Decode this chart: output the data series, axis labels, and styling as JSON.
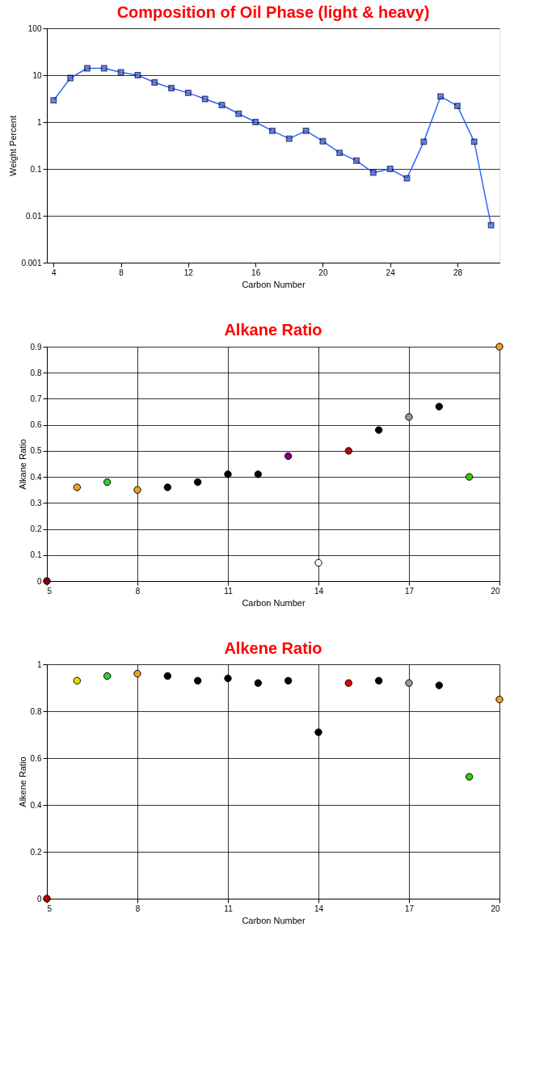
{
  "chart_data": [
    {
      "type": "line",
      "title": "Composition of Oil Phase (light & heavy)",
      "xlabel": "Carbon Number",
      "ylabel": "Weight Percent",
      "log": "y",
      "grid": "y",
      "marker": "square",
      "line_style": "solid",
      "x": [
        4,
        5,
        6,
        7,
        8,
        9,
        10,
        11,
        12,
        13,
        14,
        15,
        16,
        17,
        18,
        19,
        20,
        21,
        22,
        23,
        24,
        25,
        26,
        27,
        28,
        29,
        30
      ],
      "series": [
        {
          "color": "#3366ff",
          "values": [
            2.9,
            8.7,
            14,
            14,
            11.5,
            10,
            7,
            5.3,
            4.2,
            3.1,
            2.3,
            1.5,
            1.0,
            0.65,
            0.44,
            0.65,
            0.39,
            0.22,
            0.15,
            0.083,
            0.1,
            0.063,
            0.38,
            3.5,
            2.2,
            0.38,
            0.0063
          ]
        }
      ],
      "xlim": [
        3.6,
        30.5
      ],
      "xticks": [
        4,
        8,
        12,
        16,
        20,
        24,
        28
      ],
      "ylim": [
        0.001,
        100
      ],
      "yticks": [
        0.001,
        0.01,
        0.1,
        1,
        10,
        100
      ]
    },
    {
      "type": "scatter",
      "title": "Alkane Ratio",
      "xlabel": "Carbon Number",
      "ylabel": "Alkane Ratio",
      "grid": true,
      "marker": "circle",
      "x": [
        5,
        6,
        7,
        8,
        9,
        10,
        11,
        12,
        13,
        14,
        15,
        16,
        17,
        18,
        19,
        20
      ],
      "series": [
        {
          "colors": [
            "#8b0000",
            "#f0a020",
            "#33cc33",
            "#f0a020",
            "#000000",
            "#000000",
            "#000000",
            "#000000",
            "#800080",
            "#ffffff",
            "#c00000",
            "#000000",
            "#999999",
            "#000000",
            "#33cc00",
            "#f0a020"
          ],
          "values": [
            0,
            0.36,
            0.38,
            0.35,
            0.36,
            0.38,
            0.41,
            0.41,
            0.48,
            0.07,
            0.5,
            0.58,
            0.63,
            0.67,
            0.4,
            0.9
          ]
        }
      ],
      "xlim": [
        5,
        20
      ],
      "xticks": [
        5,
        8,
        11,
        14,
        17,
        20
      ],
      "ylim": [
        0,
        0.9
      ],
      "yticks": [
        0,
        0.1,
        0.2,
        0.3,
        0.4,
        0.5,
        0.6,
        0.7,
        0.8,
        0.9
      ]
    },
    {
      "type": "scatter",
      "title": "Alkene Ratio",
      "xlabel": "Carbon Number",
      "ylabel": "Alkene Ratio",
      "grid": true,
      "marker": "circle",
      "x": [
        5,
        6,
        7,
        8,
        9,
        10,
        11,
        12,
        13,
        14,
        15,
        16,
        17,
        18,
        19,
        20
      ],
      "series": [
        {
          "colors": [
            "#c00000",
            "#e0e000",
            "#33cc33",
            "#f0a020",
            "#000000",
            "#000000",
            "#000000",
            "#000000",
            "#000000",
            "#000000",
            "#e00000",
            "#000000",
            "#999999",
            "#000000",
            "#33cc00",
            "#f0a020"
          ],
          "values": [
            0,
            0.93,
            0.95,
            0.96,
            0.95,
            0.93,
            0.94,
            0.92,
            0.93,
            0.71,
            0.92,
            0.93,
            0.92,
            0.91,
            0.52,
            0.85
          ]
        }
      ],
      "xlim": [
        5,
        20
      ],
      "xticks": [
        5,
        8,
        11,
        14,
        17,
        20
      ],
      "ylim": [
        0,
        1
      ],
      "yticks": [
        0,
        0.2,
        0.4,
        0.6,
        0.8,
        1
      ]
    }
  ]
}
